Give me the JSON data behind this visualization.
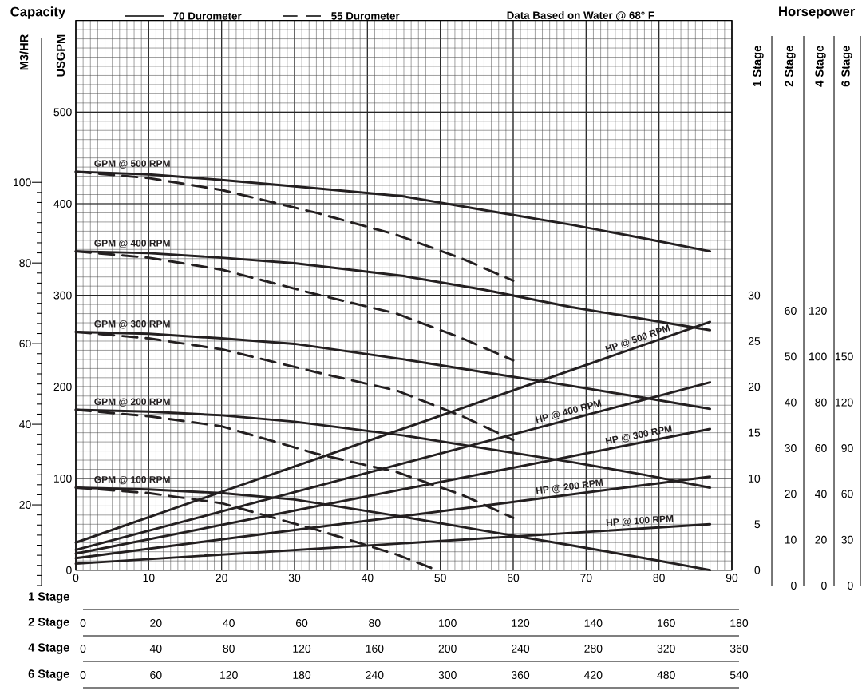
{
  "chart_data": [
    {
      "type": "line",
      "xlim": [
        0,
        90
      ],
      "xticks": [
        0,
        10,
        20,
        30,
        40,
        50,
        60,
        70,
        80,
        90
      ],
      "xlabel": "1 Stage",
      "x2lim": [
        0,
        180
      ],
      "x2ticks": [
        0,
        20,
        40,
        60,
        80,
        100,
        120,
        140,
        160,
        180
      ],
      "x2label": "2 Stage",
      "ylim": [
        0,
        600
      ],
      "yticks": [
        0,
        100,
        200,
        300,
        400,
        500
      ],
      "ylabel": "USGPM",
      "y2lim": [
        0,
        136.3
      ],
      "y2ticks": [
        20,
        40,
        60,
        80,
        100
      ],
      "y2label": "M3/HR",
      "y3lim": [
        0,
        60
      ],
      "y3ticks": [
        0,
        5,
        10,
        15,
        20,
        25,
        30
      ],
      "y3label": "1 Stage",
      "grid": true,
      "annotations": [
        "Capacity",
        "Horsepower",
        "70 Durometer",
        "55 Durometer",
        "Data Based on Water @ 68° F"
      ],
      "series": [
        {
          "name": "GPM @ 500 RPM",
          "color": "#231f20",
          "line_style": "solid",
          "x": [
            0,
            10,
            20,
            30,
            45,
            56,
            68,
            78,
            87
          ],
          "values": [
            435,
            432,
            426,
            419,
            408,
            393,
            377,
            362,
            348
          ]
        },
        {
          "name": "GPM @ 400 RPM",
          "color": "#231f20",
          "line_style": "solid",
          "x": [
            0,
            10,
            20,
            30,
            45,
            56,
            68,
            78,
            87
          ],
          "values": [
            348,
            346,
            341,
            335,
            321,
            306,
            287,
            274,
            262
          ]
        },
        {
          "name": "GPM @ 300 RPM",
          "color": "#231f20",
          "line_style": "solid",
          "x": [
            0,
            10,
            20,
            30,
            45,
            56,
            68,
            78,
            87
          ],
          "values": [
            260,
            258,
            253,
            247,
            230,
            216,
            201,
            188,
            176
          ]
        },
        {
          "name": "GPM @ 200 RPM",
          "color": "#231f20",
          "line_style": "solid",
          "x": [
            0,
            10,
            20,
            30,
            45,
            56,
            68,
            78,
            87
          ],
          "values": [
            175,
            173,
            169,
            162,
            147,
            133,
            118,
            104,
            90
          ]
        },
        {
          "name": "GPM @ 100 RPM",
          "color": "#231f20",
          "line_style": "solid",
          "x": [
            0,
            10,
            20,
            30,
            45,
            56,
            68,
            78,
            87
          ],
          "values": [
            90,
            88,
            84,
            77,
            58,
            43,
            27,
            13,
            0
          ]
        },
        {
          "color": "#231f20",
          "line_style": "dashed",
          "x": [
            0,
            10,
            20,
            33,
            44,
            53,
            60
          ],
          "values": [
            435,
            428,
            415,
            390,
            366,
            340,
            316
          ]
        },
        {
          "color": "#231f20",
          "line_style": "dashed",
          "x": [
            0,
            10,
            20,
            33,
            44,
            53,
            60
          ],
          "values": [
            348,
            341,
            328,
            301,
            280,
            253,
            229
          ]
        },
        {
          "color": "#231f20",
          "line_style": "dashed",
          "x": [
            0,
            10,
            20,
            33,
            44,
            53,
            60
          ],
          "values": [
            260,
            253,
            241,
            216,
            196,
            168,
            142
          ]
        },
        {
          "color": "#231f20",
          "line_style": "dashed",
          "x": [
            0,
            10,
            20,
            33,
            44,
            53,
            60
          ],
          "values": [
            175,
            168,
            157,
            127,
            107,
            82,
            57
          ]
        },
        {
          "color": "#231f20",
          "line_style": "dashed",
          "x": [
            0,
            10,
            20,
            33,
            44,
            49.5
          ],
          "values": [
            90,
            84,
            73,
            44,
            17,
            0
          ]
        },
        {
          "name": "HP @ 500 RPM",
          "color": "#231f20",
          "line_style": "solid",
          "axis": "y3",
          "x": [
            0,
            87
          ],
          "values": [
            3,
            27.1
          ]
        },
        {
          "name": "HP @ 400 RPM",
          "color": "#231f20",
          "line_style": "solid",
          "axis": "y3",
          "x": [
            0,
            87
          ],
          "values": [
            2.2,
            20.5
          ]
        },
        {
          "name": "HP @ 300 RPM",
          "color": "#231f20",
          "line_style": "solid",
          "axis": "y3",
          "x": [
            0,
            87
          ],
          "values": [
            1.8,
            15.4
          ]
        },
        {
          "name": "HP @ 200 RPM",
          "color": "#231f20",
          "line_style": "solid",
          "axis": "y3",
          "x": [
            0,
            87
          ],
          "values": [
            1.3,
            10.2
          ]
        },
        {
          "name": "HP @ 100 RPM",
          "color": "#231f20",
          "line_style": "solid",
          "axis": "y3",
          "x": [
            0,
            87
          ],
          "values": [
            0.7,
            5.0
          ]
        }
      ]
    },
    {
      "type": "line",
      "xlim": [
        0,
        360
      ],
      "xticks": [
        0,
        40,
        80,
        120,
        160,
        200,
        240,
        280,
        320,
        360
      ],
      "xlabel": "4 Stage",
      "x2lim": [
        0,
        540
      ],
      "x2ticks": [
        0,
        60,
        120,
        180,
        240,
        300,
        360,
        420,
        480,
        540
      ],
      "x2label": "6 Stage",
      "ylim": [
        0,
        120
      ],
      "yticks": [
        0,
        10,
        20,
        30,
        40,
        50,
        60
      ],
      "ylabel": "2 Stage",
      "y2lim": [
        0,
        240
      ],
      "y2ticks": [
        0,
        20,
        40,
        60,
        80,
        100,
        120
      ],
      "y2label": "4 Stage",
      "y3lim": [
        0,
        360
      ],
      "y3ticks": [
        0,
        30,
        60,
        90,
        120,
        150
      ],
      "y3label": "6 Stage"
    }
  ]
}
